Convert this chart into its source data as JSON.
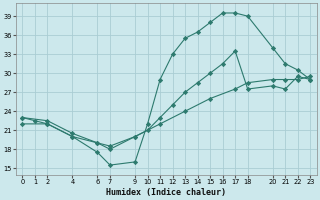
{
  "xlabel": "Humidex (Indice chaleur)",
  "bg_color": "#cce8ec",
  "grid_color": "#aacdd4",
  "line_color": "#2d7a6e",
  "loop_x": [
    0,
    1,
    2,
    4,
    6,
    7,
    9,
    10,
    11,
    12,
    13,
    14,
    15,
    16,
    17,
    18,
    20,
    21,
    22,
    23
  ],
  "loop_y": [
    23,
    22.5,
    22,
    20,
    17.5,
    15.5,
    16,
    22,
    29,
    33,
    35.5,
    36.5,
    38,
    39.5,
    39.5,
    39,
    34,
    31.5,
    30.5,
    29
  ],
  "line2_x": [
    0,
    2,
    4,
    6,
    7,
    9,
    10,
    11,
    12,
    13,
    14,
    15,
    16,
    17,
    18,
    20,
    21,
    22,
    23
  ],
  "line2_y": [
    23,
    22.5,
    20.5,
    19,
    18,
    20,
    21,
    23,
    25,
    27,
    28.5,
    30,
    31.5,
    33.5,
    27.5,
    28,
    27.5,
    29.5,
    29
  ],
  "line3_x": [
    0,
    2,
    4,
    6,
    7,
    9,
    11,
    13,
    15,
    17,
    18,
    20,
    21,
    22,
    23
  ],
  "line3_y": [
    22,
    22,
    20,
    19,
    18.5,
    20,
    22,
    24,
    26,
    27.5,
    28.5,
    29,
    29,
    29,
    29.5
  ],
  "xlim": [
    -0.5,
    23.5
  ],
  "ylim": [
    14,
    41
  ],
  "yticks": [
    15,
    18,
    21,
    24,
    27,
    30,
    33,
    36,
    39
  ],
  "xticks": [
    0,
    1,
    2,
    4,
    6,
    7,
    9,
    10,
    11,
    12,
    13,
    14,
    15,
    16,
    17,
    18,
    20,
    21,
    22,
    23
  ]
}
